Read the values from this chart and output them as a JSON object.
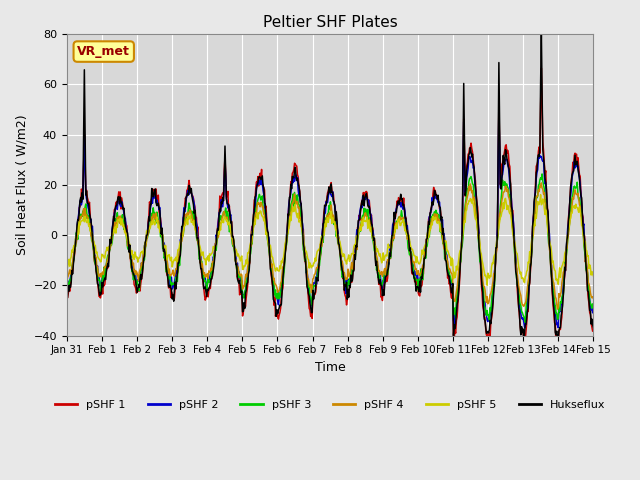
{
  "title": "Peltier SHF Plates",
  "xlabel": "Time",
  "ylabel": "Soil Heat Flux ( W/m2)",
  "ylim": [
    -40,
    80
  ],
  "series_colors": {
    "pSHF 1": "#cc0000",
    "pSHF 2": "#0000cc",
    "pSHF 3": "#00cc00",
    "pSHF 4": "#cc8800",
    "pSHF 5": "#cccc00",
    "Hukseflux": "#000000"
  },
  "annotation_text": "VR_met",
  "annotation_box_facecolor": "#ffff99",
  "annotation_box_edgecolor": "#cc8800",
  "background_color": "#e8e8e8",
  "axes_background": "#d8d8d8",
  "grid_color": "#ffffff",
  "x_tick_labels": [
    "Jan 31",
    "Feb 1",
    "Feb 2",
    "Feb 3",
    "Feb 4",
    "Feb 5",
    "Feb 6",
    "Feb 7",
    "Feb 8",
    "Feb 9",
    "Feb 10",
    "Feb 11",
    "Feb 12",
    "Feb 13",
    "Feb 14",
    "Feb 15"
  ],
  "n_points_per_day": 48
}
